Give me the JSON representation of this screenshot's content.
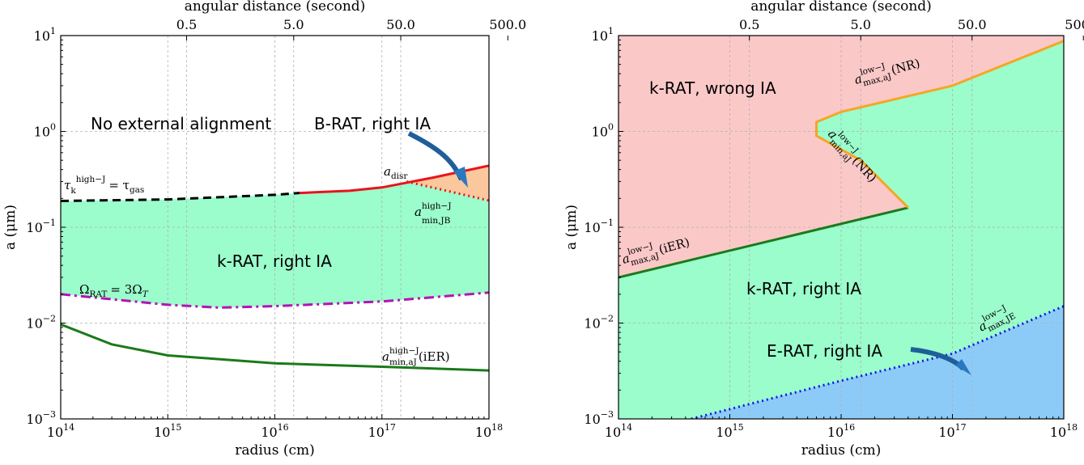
{
  "chart_data": [
    {
      "type": "area",
      "xlabel": "radius (cm)",
      "ylabel": "a (μm)",
      "x_top_label": "angular distance (second)",
      "x_scale": "log",
      "y_scale": "log",
      "xlim": [
        100000000000000.0,
        1e+18
      ],
      "ylim": [
        0.001,
        10
      ],
      "grid": true,
      "x_ticks": [
        {
          "value": 100000000000000.0,
          "base": "10",
          "exp": "14"
        },
        {
          "value": 1000000000000000.0,
          "base": "10",
          "exp": "15"
        },
        {
          "value": 1e+16,
          "base": "10",
          "exp": "16"
        },
        {
          "value": 1e+17,
          "base": "10",
          "exp": "17"
        },
        {
          "value": 1e+18,
          "base": "10",
          "exp": "18"
        }
      ],
      "y_ticks": [
        {
          "value": 0.001,
          "base": "10",
          "exp": "−3"
        },
        {
          "value": 0.01,
          "base": "10",
          "exp": "−2"
        },
        {
          "value": 0.1,
          "base": "10",
          "exp": "−1"
        },
        {
          "value": 1,
          "base": "10",
          "exp": "0"
        },
        {
          "value": 10,
          "base": "10",
          "exp": "1"
        }
      ],
      "top_ticks": [
        {
          "label": "0.5",
          "radius": 1500000000000000.0
        },
        {
          "label": "5.0",
          "radius": 1.5e+16
        },
        {
          "label": "50.0",
          "radius": 1.5e+17
        },
        {
          "label": "500.0",
          "radius": 1.5e+18
        }
      ],
      "series": [
        {
          "id": "tau-line",
          "style": "dashed",
          "color": "#000000",
          "x": [
            100000000000000.0,
            1000000000000000.0,
            1e+16,
            1.7e+16
          ],
          "y": [
            0.188,
            0.195,
            0.218,
            0.228
          ]
        },
        {
          "id": "a-disr",
          "style": "solid",
          "color": "#e8141a",
          "x": [
            1.7e+16,
            5e+16,
            1e+17,
            3e+17,
            1e+18
          ],
          "y": [
            0.228,
            0.24,
            0.26,
            0.33,
            0.44
          ]
        },
        {
          "id": "a-min-JB",
          "style": "dotted",
          "color": "#e8141a",
          "x": [
            1.7e+17,
            1e+18
          ],
          "y": [
            0.3,
            0.19
          ]
        },
        {
          "id": "omega-line",
          "style": "dashdot",
          "color": "#b512b5",
          "x": [
            100000000000000.0,
            1000000000000000.0,
            3000000000000000.0,
            1e+16,
            1e+17,
            1e+18
          ],
          "y": [
            0.02,
            0.0155,
            0.0145,
            0.015,
            0.0168,
            0.0208
          ]
        },
        {
          "id": "a-min-aJ-iER",
          "style": "solid",
          "color": "#1a7a1a",
          "x": [
            100000000000000.0,
            300000000000000.0,
            1000000000000000.0,
            3000000000000000.0,
            1e+16,
            1e+17,
            1e+18
          ],
          "y": [
            0.0097,
            0.006,
            0.0046,
            0.0042,
            0.0038,
            0.0035,
            0.0032
          ]
        }
      ],
      "regions": [
        {
          "id": "krat-right",
          "label": "k-RAT, right IA",
          "color": "#9bfccc"
        },
        {
          "id": "brat-right",
          "label": "B-RAT, right IA",
          "color": "#fbc79c"
        },
        {
          "id": "no-align",
          "label": "No external alignment",
          "color": "#ffffff"
        }
      ],
      "annotations": {
        "no_alignment": "No external alignment",
        "brat": "B-RAT, right IA",
        "krat": "k-RAT, right IA",
        "tau_lhs": "τ",
        "tau_sub": "k",
        "tau_sup": "high−J",
        "tau_rhs": "= τ",
        "tau_rhs_sub": "gas",
        "a_disr": "a",
        "a_disr_sub": "disr",
        "a_min_JB": "a",
        "a_min_JB_sup": "high−J",
        "a_min_JB_sub": "min,JB",
        "omega_lhs": "Ω",
        "omega_lhs_sub": "RAT",
        "omega_rhs": "= 3Ω",
        "omega_rhs_sub": "T",
        "a_min_aJ": "a",
        "a_min_aJ_sup": "high−J",
        "a_min_aJ_sub": "min,aJ",
        "a_min_aJ_suffix": "(iER)"
      }
    },
    {
      "type": "area",
      "xlabel": "radius (cm)",
      "ylabel": "a (μm)",
      "x_top_label": "angular distance (second)",
      "x_scale": "log",
      "y_scale": "log",
      "xlim": [
        100000000000000.0,
        1e+18
      ],
      "ylim": [
        0.001,
        10
      ],
      "grid": true,
      "x_ticks": [
        {
          "value": 100000000000000.0,
          "base": "10",
          "exp": "14"
        },
        {
          "value": 1000000000000000.0,
          "base": "10",
          "exp": "15"
        },
        {
          "value": 1e+16,
          "base": "10",
          "exp": "16"
        },
        {
          "value": 1e+17,
          "base": "10",
          "exp": "17"
        },
        {
          "value": 1e+18,
          "base": "10",
          "exp": "18"
        }
      ],
      "y_ticks": [
        {
          "value": 0.001,
          "base": "10",
          "exp": "−3"
        },
        {
          "value": 0.01,
          "base": "10",
          "exp": "−2"
        },
        {
          "value": 0.1,
          "base": "10",
          "exp": "−1"
        },
        {
          "value": 1,
          "base": "10",
          "exp": "0"
        },
        {
          "value": 10,
          "base": "10",
          "exp": "1"
        }
      ],
      "top_ticks": [
        {
          "label": "0.5",
          "radius": 1500000000000000.0
        },
        {
          "label": "5.0",
          "radius": 1.5e+16
        },
        {
          "label": "50.0",
          "radius": 1.5e+17
        },
        {
          "label": "500.0",
          "radius": 1.5e+18
        }
      ],
      "series": [
        {
          "id": "a-max-aJ-iER",
          "style": "solid",
          "color": "#1a7a1a",
          "x": [
            100000000000000.0,
            4e+16
          ],
          "y": [
            0.03,
            0.16
          ]
        },
        {
          "id": "a-NR-curve",
          "style": "solid",
          "color": "#f5a623",
          "x": [
            4e+16,
            1.5e+16,
            6000000000000000.0,
            6000000000000000.0,
            1e+16,
            1e+17,
            1e+18
          ],
          "y": [
            0.16,
            0.5,
            0.9,
            1.25,
            1.6,
            3.0,
            8.8
          ]
        },
        {
          "id": "a-max-JE",
          "style": "dotted",
          "color": "#1414e6",
          "x": [
            450000000000000.0,
            1e+16,
            1e+17,
            1e+18
          ],
          "y": [
            0.001,
            0.0025,
            0.0048,
            0.015
          ]
        }
      ],
      "regions": [
        {
          "id": "krat-wrong",
          "label": "k-RAT, wrong IA",
          "color": "#fbc8c8"
        },
        {
          "id": "krat-right",
          "label": "k-RAT, right IA",
          "color": "#9bfccc"
        },
        {
          "id": "erat-right",
          "label": "E-RAT, right IA",
          "color": "#8ccbf8"
        }
      ],
      "annotations": {
        "krat_wrong": "k-RAT, wrong IA",
        "krat_right": "k-RAT, right IA",
        "erat": "E-RAT, right IA",
        "a_max_NR": "a",
        "a_max_NR_sup": "low−J",
        "a_max_NR_sub": "max,aJ",
        "a_max_NR_suffix": "(NR)",
        "a_min_NR": "a",
        "a_min_NR_sup": "low−J",
        "a_min_NR_sub": "min,aJ",
        "a_min_NR_suffix": "(NR)",
        "a_max_iER": "a",
        "a_max_iER_sup": "low−J",
        "a_max_iER_sub": "max,aJ",
        "a_max_iER_suffix": "(iER)",
        "a_max_JE": "a",
        "a_max_JE_sup": "low−J",
        "a_max_JE_sub": "max,JE"
      }
    }
  ]
}
